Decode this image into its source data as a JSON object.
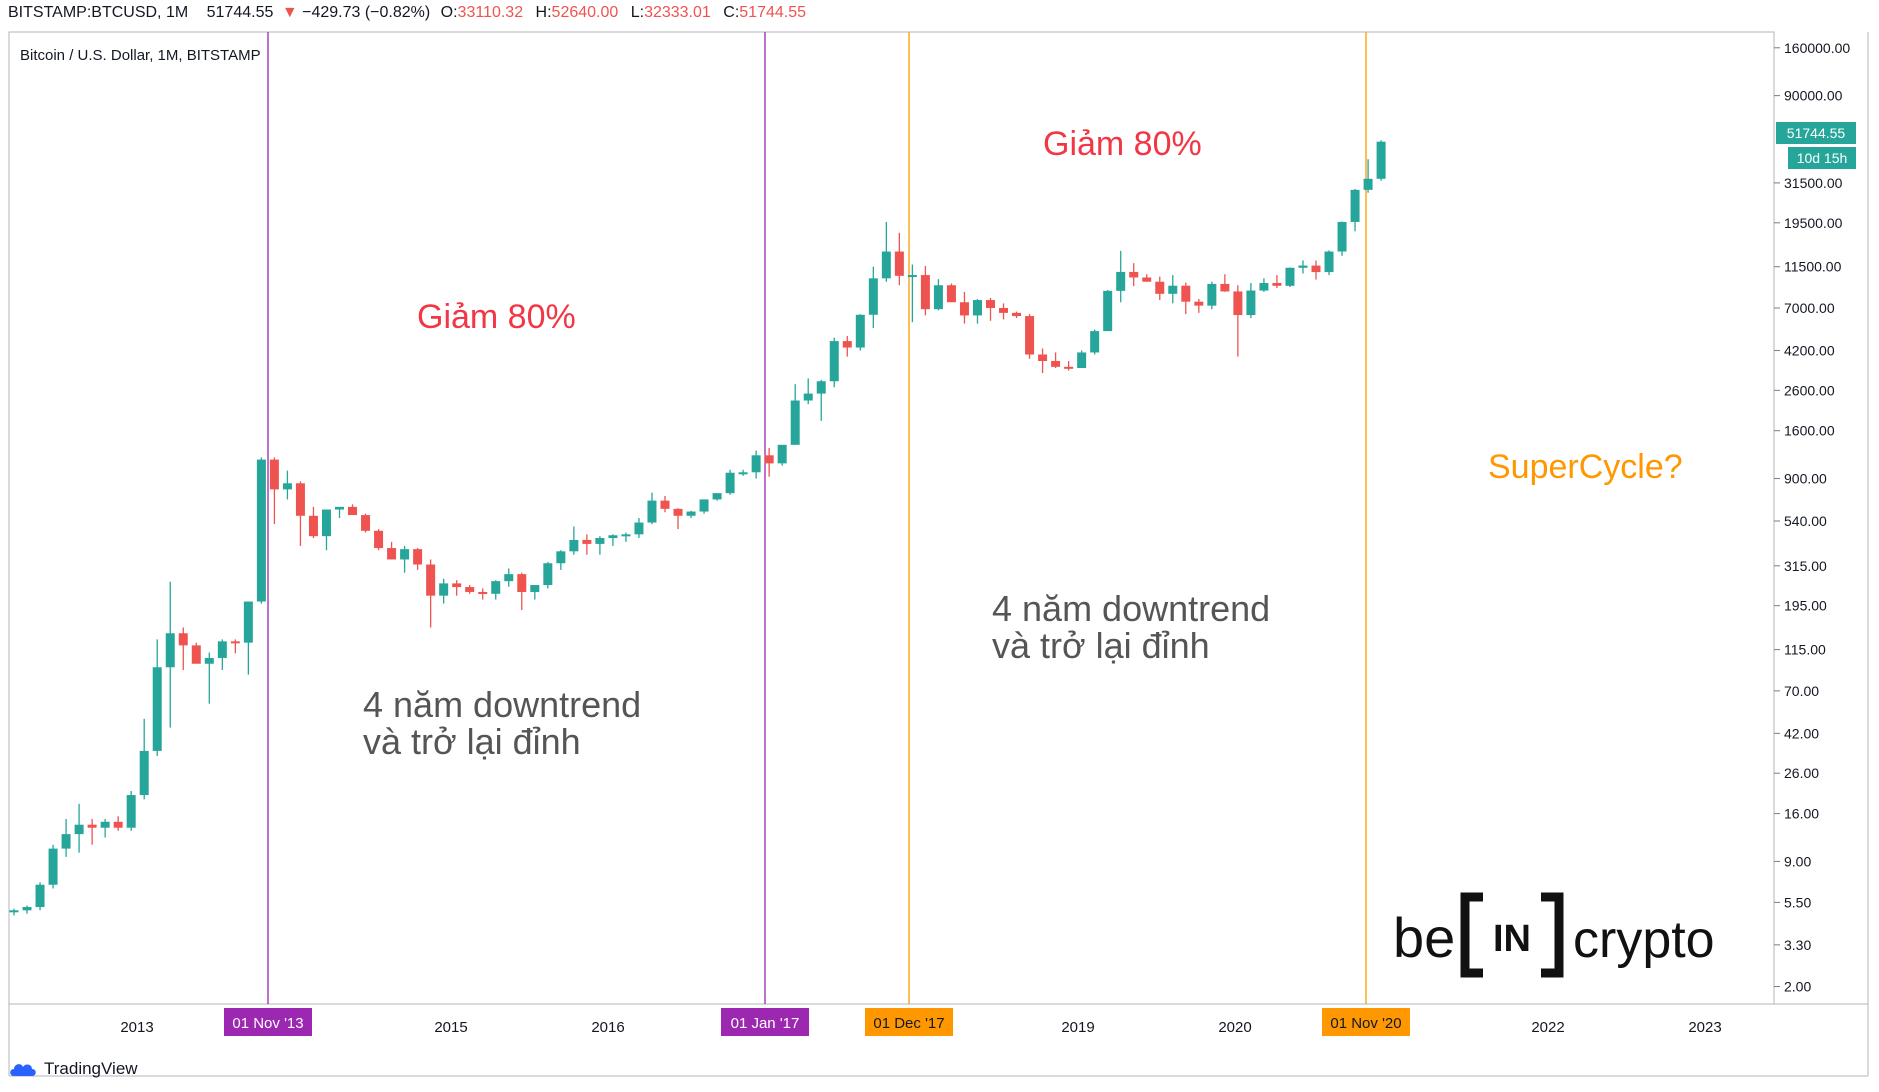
{
  "header": {
    "symbol": "BITSTAMP:BTCUSD, 1M",
    "last": "51744.55",
    "arrow": "▼",
    "change": "−429.73 (−0.82%)",
    "o_label": "O:",
    "o": "33110.32",
    "h_label": "H:",
    "h": "52640.00",
    "l_label": "L:",
    "l": "32333.01",
    "c_label": "C:",
    "c": "51744.55"
  },
  "chart_title": "Bitcoin / U.S. Dollar, 1M, BITSTAMP",
  "price_badge": {
    "price": "51744.55",
    "countdown": "10d 15h"
  },
  "footer": {
    "brand": "TradingView"
  },
  "logo": {
    "text_left": "be",
    "text_mid": "IN",
    "text_right": "crypto"
  },
  "colors": {
    "up": "#26a69a",
    "down": "#ef5350",
    "purple": "#9c27b0",
    "orange": "#ff9800",
    "annotation_red": "#f23645",
    "annotation_gray": "#555555",
    "annotation_orange": "#ff9800"
  },
  "annotations": {
    "drop1": "Giảm 80%",
    "drop2": "Giảm 80%",
    "recover1": [
      "4 năm downtrend",
      "và trở lại đỉnh"
    ],
    "recover2": [
      "4 năm downtrend",
      "và trở lại đỉnh"
    ],
    "supercycle": "SuperCycle?"
  },
  "chart_data": {
    "type": "candlestick",
    "title": "Bitcoin / U.S. Dollar, 1M, BITSTAMP",
    "y_scale": "log",
    "ylim": [
      1.7,
      180000
    ],
    "y_ticks": [
      160000,
      90000,
      31500,
      19500,
      11500,
      7000,
      4200,
      2600,
      1600,
      900,
      540,
      315,
      195,
      115,
      70,
      42,
      26,
      16,
      9,
      5.5,
      3.3,
      2
    ],
    "y_tick_labels": [
      "160000.00",
      "90000.00",
      "31500.00",
      "19500.00",
      "11500.00",
      "7000.00",
      "4200.00",
      "2600.00",
      "1600.00",
      "900.00",
      "540.00",
      "315.00",
      "195.00",
      "115.00",
      "70.00",
      "42.00",
      "26.00",
      "16.00",
      "9.00",
      "5.50",
      "3.30",
      "2.00"
    ],
    "x_tick_labels": [
      "2013",
      "2015",
      "2016",
      "2019",
      "2020",
      "2022",
      "2023"
    ],
    "marker_labels": [
      {
        "label": "01 Nov '13",
        "color": "purple"
      },
      {
        "label": "01 Jan '17",
        "color": "purple"
      },
      {
        "label": "01 Dec '17",
        "color": "orange"
      },
      {
        "label": "01 Nov '20",
        "color": "orange"
      }
    ],
    "candles_ohlc": [
      [
        4.9,
        5.1,
        4.7,
        5.0
      ],
      [
        5.0,
        5.3,
        4.8,
        5.2
      ],
      [
        5.2,
        7.0,
        5.0,
        6.8
      ],
      [
        6.8,
        11,
        6.5,
        10.5
      ],
      [
        10.5,
        15,
        9.5,
        12.5
      ],
      [
        12.5,
        18,
        10,
        14
      ],
      [
        14,
        15,
        11,
        13.5
      ],
      [
        13.5,
        15,
        12,
        14.5
      ],
      [
        14.5,
        15.5,
        13,
        13.5
      ],
      [
        13.5,
        21,
        13,
        20
      ],
      [
        20,
        50,
        19,
        34
      ],
      [
        34,
        130,
        32,
        93
      ],
      [
        93,
        260,
        45,
        140
      ],
      [
        140,
        150,
        90,
        121
      ],
      [
        121,
        125,
        100,
        97
      ],
      [
        97,
        111,
        60,
        104
      ],
      [
        104,
        130,
        90,
        127
      ],
      [
        127,
        130,
        110,
        125
      ],
      [
        125,
        205,
        85,
        205
      ],
      [
        205,
        1160,
        200,
        1130
      ],
      [
        1130,
        1160,
        520,
        790
      ],
      [
        790,
        990,
        700,
        850
      ],
      [
        850,
        870,
        400,
        575
      ],
      [
        575,
        640,
        440,
        450
      ],
      [
        450,
        470,
        380,
        620
      ],
      [
        620,
        630,
        560,
        640
      ],
      [
        640,
        660,
        600,
        580
      ],
      [
        580,
        590,
        470,
        480
      ],
      [
        480,
        490,
        380,
        390
      ],
      [
        390,
        420,
        340,
        340
      ],
      [
        340,
        400,
        290,
        385
      ],
      [
        385,
        390,
        300,
        320
      ],
      [
        320,
        340,
        150,
        220
      ],
      [
        220,
        270,
        200,
        255
      ],
      [
        255,
        265,
        220,
        244
      ],
      [
        244,
        250,
        225,
        230
      ],
      [
        230,
        240,
        210,
        225
      ],
      [
        225,
        265,
        210,
        262
      ],
      [
        262,
        305,
        245,
        285
      ],
      [
        285,
        290,
        185,
        230
      ],
      [
        230,
        240,
        210,
        250
      ],
      [
        250,
        330,
        240,
        325
      ],
      [
        325,
        380,
        300,
        375
      ],
      [
        375,
        505,
        360,
        430
      ],
      [
        430,
        460,
        360,
        410
      ],
      [
        410,
        450,
        360,
        440
      ],
      [
        440,
        460,
        400,
        455
      ],
      [
        455,
        470,
        420,
        460
      ],
      [
        460,
        560,
        440,
        530
      ],
      [
        530,
        760,
        520,
        690
      ],
      [
        690,
        730,
        600,
        625
      ],
      [
        625,
        630,
        490,
        575
      ],
      [
        575,
        610,
        560,
        605
      ],
      [
        605,
        700,
        590,
        700
      ],
      [
        700,
        740,
        690,
        755
      ],
      [
        755,
        1000,
        740,
        965
      ],
      [
        965,
        1000,
        930,
        970
      ],
      [
        970,
        1260,
        900,
        1190
      ],
      [
        1190,
        1300,
        920,
        1080
      ],
      [
        1080,
        1250,
        1050,
        1350
      ],
      [
        1350,
        2800,
        1350,
        2300
      ],
      [
        2300,
        3000,
        2200,
        2500
      ],
      [
        2500,
        2950,
        1800,
        2900
      ],
      [
        2900,
        4900,
        2700,
        4700
      ],
      [
        4700,
        5000,
        3900,
        4350
      ],
      [
        4350,
        6500,
        4200,
        6450
      ],
      [
        6450,
        11500,
        5500,
        10000
      ],
      [
        10000,
        19700,
        9600,
        13800
      ],
      [
        13800,
        17300,
        9200,
        10300
      ],
      [
        10300,
        11800,
        5900,
        10400
      ],
      [
        10400,
        11600,
        6400,
        6900
      ],
      [
        6900,
        9900,
        6800,
        9200
      ],
      [
        9200,
        9400,
        7500,
        7500
      ],
      [
        7500,
        8500,
        5800,
        6400
      ],
      [
        6400,
        7800,
        5800,
        7700
      ],
      [
        7700,
        7900,
        6000,
        7000
      ],
      [
        7000,
        7400,
        6100,
        6600
      ],
      [
        6600,
        6700,
        6200,
        6350
      ],
      [
        6350,
        6500,
        3800,
        4000
      ],
      [
        4000,
        4300,
        3200,
        3700
      ],
      [
        3700,
        4100,
        3400,
        3450
      ],
      [
        3450,
        3700,
        3300,
        3400
      ],
      [
        3400,
        4200,
        3400,
        4100
      ],
      [
        4100,
        5400,
        4000,
        5300
      ],
      [
        5300,
        8700,
        5300,
        8600
      ],
      [
        8600,
        13900,
        7500,
        10800
      ],
      [
        10800,
        12000,
        9100,
        10100
      ],
      [
        10100,
        10500,
        9600,
        9600
      ],
      [
        9600,
        10200,
        7700,
        8300
      ],
      [
        8300,
        10400,
        7400,
        9150
      ],
      [
        9150,
        9500,
        6500,
        7550
      ],
      [
        7550,
        7800,
        6600,
        7200
      ],
      [
        7200,
        9600,
        6900,
        9350
      ],
      [
        9350,
        10500,
        8500,
        8540
      ],
      [
        8540,
        9200,
        3900,
        6430
      ],
      [
        6430,
        9450,
        6200,
        8630
      ],
      [
        8630,
        10000,
        8500,
        9450
      ],
      [
        9450,
        10400,
        8900,
        9140
      ],
      [
        9140,
        11400,
        9000,
        11350
      ],
      [
        11350,
        12400,
        10600,
        11660
      ],
      [
        11660,
        12400,
        9850,
        10780
      ],
      [
        10780,
        14000,
        10400,
        13800
      ],
      [
        13800,
        19800,
        13100,
        19700
      ],
      [
        19700,
        29300,
        17600,
        28980
      ],
      [
        28980,
        41900,
        28000,
        33100
      ],
      [
        33110,
        52640,
        32333,
        51744
      ]
    ]
  }
}
